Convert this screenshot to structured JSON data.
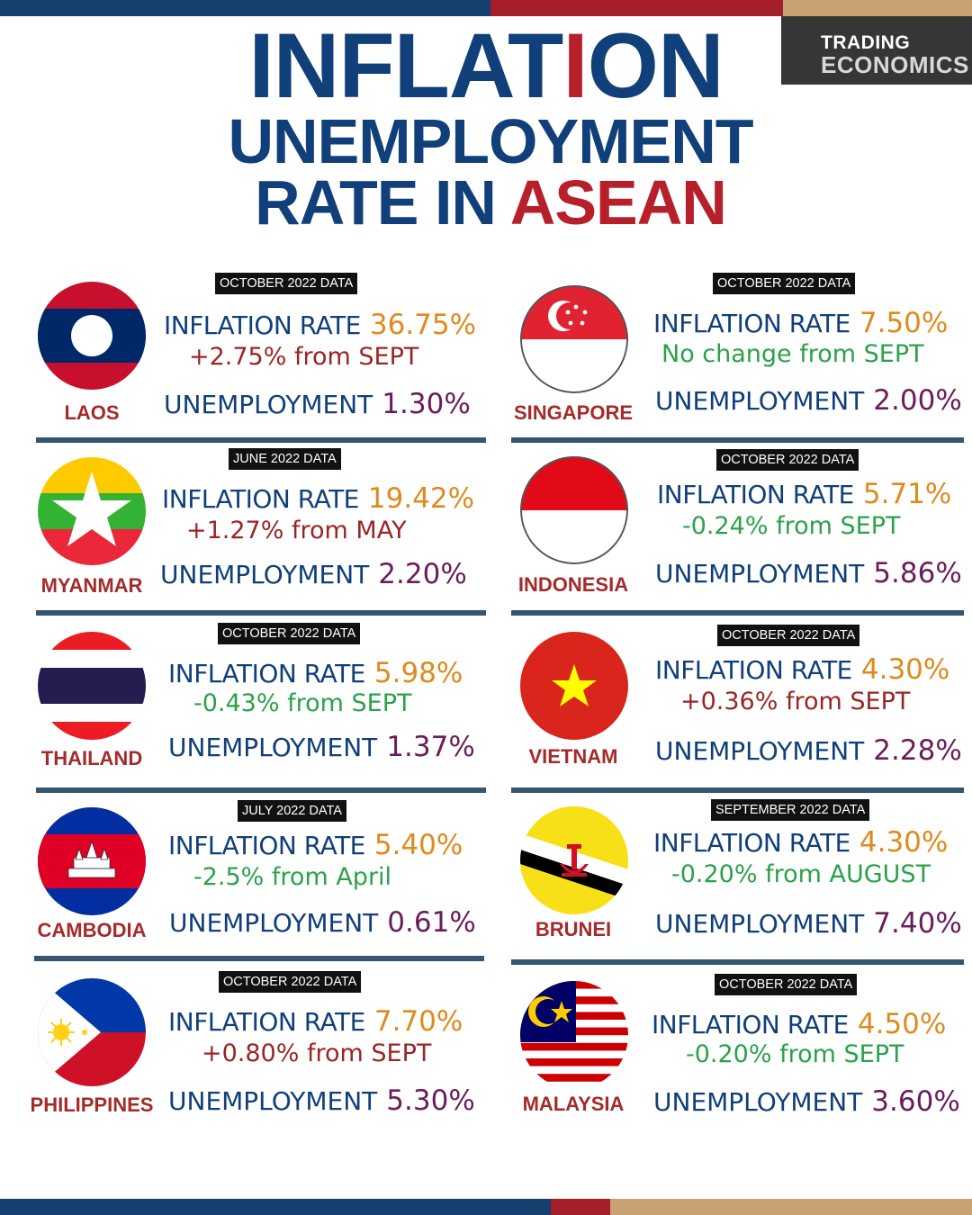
{
  "header": {
    "title_part1": "INFLAT",
    "title_accent": "I",
    "title_part2": "ON",
    "subtitle_line1": "UNEMPLOYMENT",
    "subtitle_line2_prefix": "RATE IN ",
    "subtitle_line2_accent": "ASEAN"
  },
  "logo": {
    "line1": "TRADING",
    "line2": "ECONOMICS"
  },
  "colors": {
    "navy": "#103f7a",
    "red": "#b7202a",
    "orange": "#e08a1e",
    "green": "#2aa24a",
    "purple": "#6a1c5c",
    "tan": "#c8a272"
  },
  "labels": {
    "inflation": "INFLATION RATE",
    "unemployment": "UNEMPLOYMENT"
  },
  "countries": [
    {
      "name": "LAOS",
      "data_period": "OCTOBER 2022 DATA",
      "inflation": "36.75%",
      "change": "+2.75% from SEPT",
      "direction": "up",
      "unemployment": "1.30%",
      "flag_icon": "laos-flag-icon"
    },
    {
      "name": "SINGAPORE",
      "data_period": "OCTOBER 2022 DATA",
      "inflation": "7.50%",
      "change": "No change from SEPT",
      "direction": "flat",
      "unemployment": "2.00%",
      "flag_icon": "singapore-flag-icon"
    },
    {
      "name": "MYANMAR",
      "data_period": "JUNE 2022 DATA",
      "inflation": "19.42%",
      "change": "+1.27% from MAY",
      "direction": "up",
      "unemployment": "2.20%",
      "flag_icon": "myanmar-flag-icon"
    },
    {
      "name": "INDONESIA",
      "data_period": "OCTOBER 2022 DATA",
      "inflation": "5.71%",
      "change": "-0.24% from SEPT",
      "direction": "down",
      "unemployment": "5.86%",
      "flag_icon": "indonesia-flag-icon"
    },
    {
      "name": "THAILAND",
      "data_period": "OCTOBER 2022 DATA",
      "inflation": "5.98%",
      "change": "-0.43% from SEPT",
      "direction": "down",
      "unemployment": "1.37%",
      "flag_icon": "thailand-flag-icon"
    },
    {
      "name": "VIETNAM",
      "data_period": "OCTOBER 2022 DATA",
      "inflation": "4.30%",
      "change": "+0.36% from SEPT",
      "direction": "up",
      "unemployment": "2.28%",
      "flag_icon": "vietnam-flag-icon"
    },
    {
      "name": "CAMBODIA",
      "data_period": "JULY 2022 DATA",
      "inflation": "5.40%",
      "change": "-2.5% from April",
      "direction": "down",
      "unemployment": "0.61%",
      "flag_icon": "cambodia-flag-icon"
    },
    {
      "name": "BRUNEI",
      "data_period": "SEPTEMBER 2022 DATA",
      "inflation": "4.30%",
      "change": "-0.20% from AUGUST",
      "direction": "down",
      "unemployment": "7.40%",
      "flag_icon": "brunei-flag-icon"
    },
    {
      "name": "PHILIPPINES",
      "data_period": "OCTOBER 2022 DATA",
      "inflation": "7.70%",
      "change": "+0.80% from SEPT",
      "direction": "up",
      "unemployment": "5.30%",
      "flag_icon": "philippines-flag-icon"
    },
    {
      "name": "MALAYSIA",
      "data_period": "OCTOBER 2022 DATA",
      "inflation": "4.50%",
      "change": "-0.20% from SEPT",
      "direction": "down",
      "unemployment": "3.60%",
      "flag_icon": "malaysia-flag-icon"
    }
  ]
}
